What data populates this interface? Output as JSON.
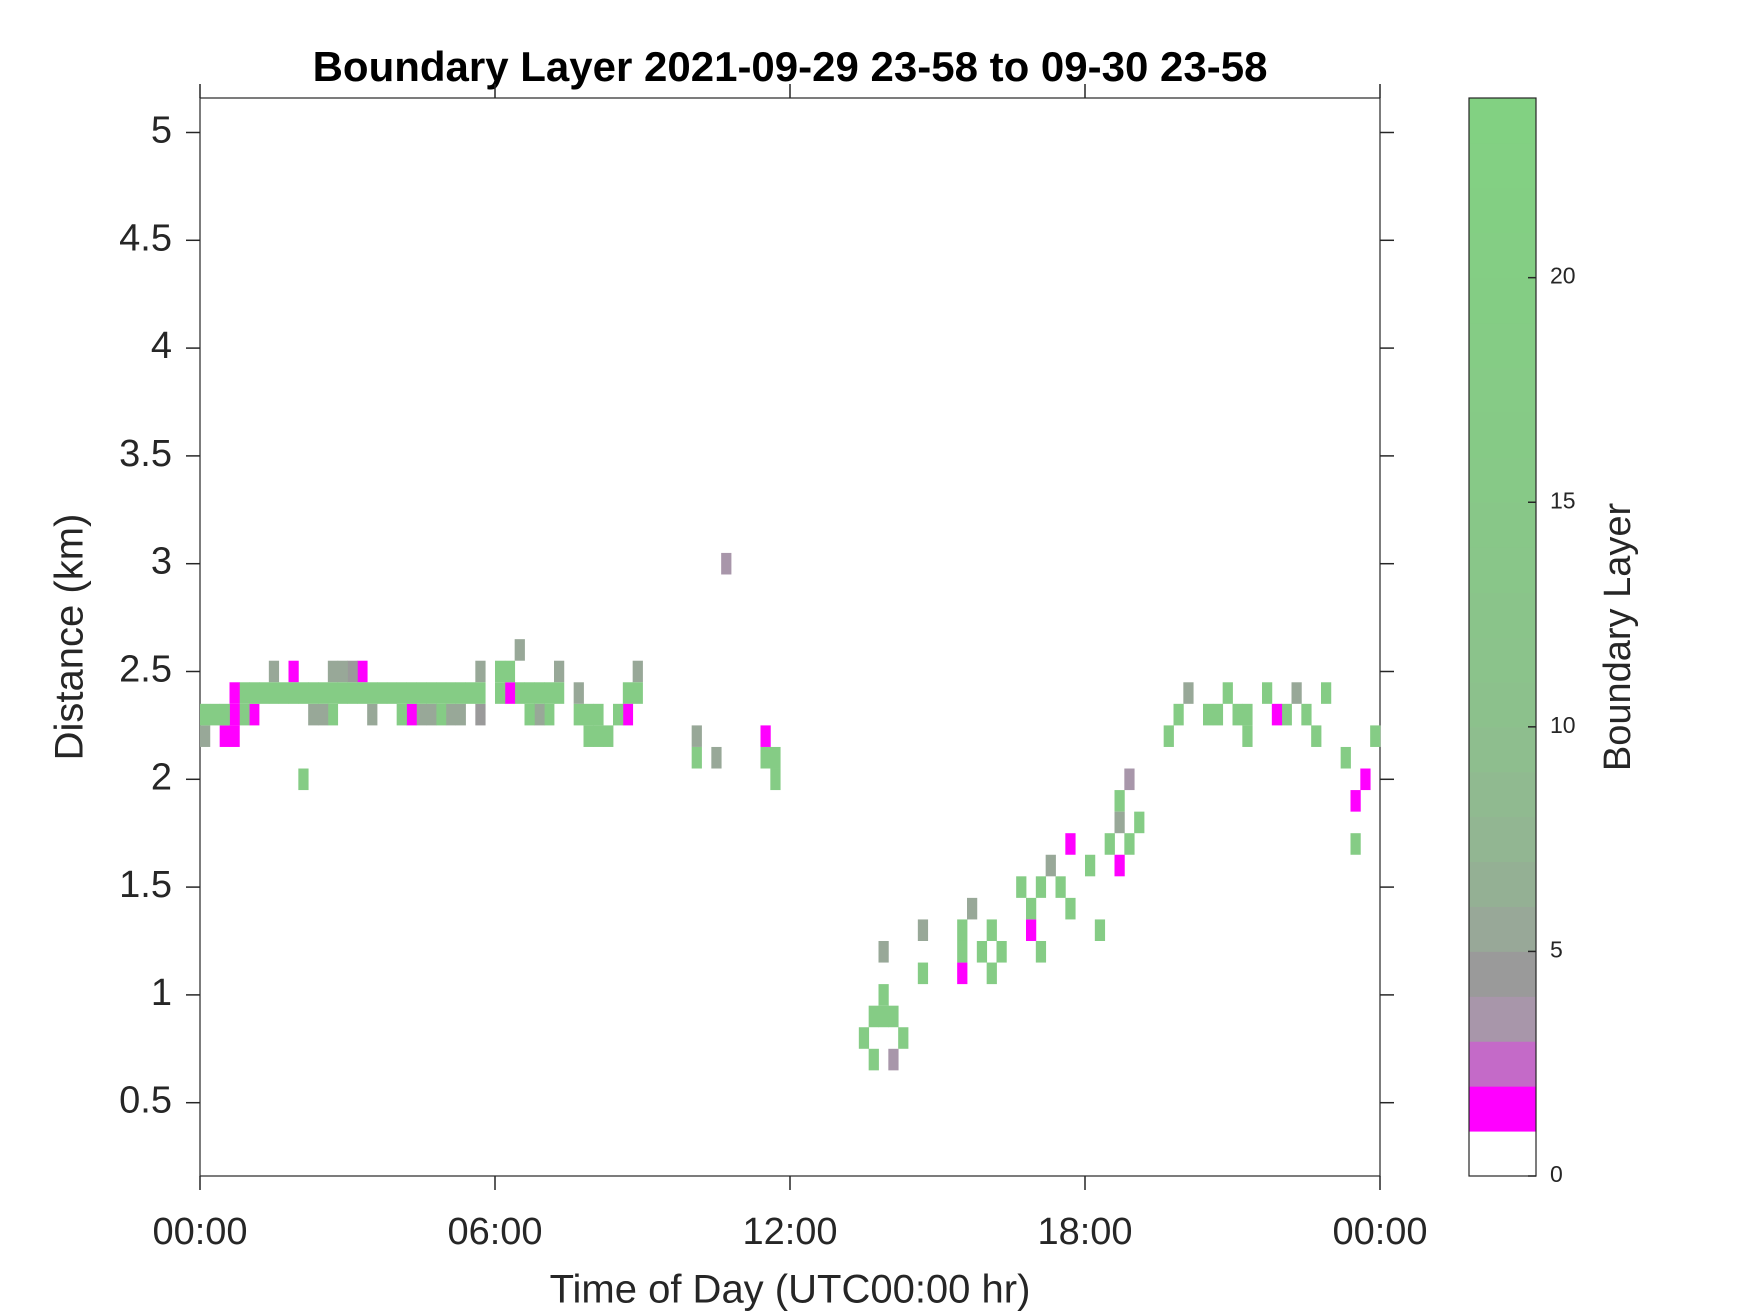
{
  "chart_data": {
    "type": "heatmap",
    "title": "Boundary Layer 2021-09-29 23-58 to 09-30 23-58",
    "xlabel": "Time of Day (UTC00:00 hr)",
    "ylabel": "Distance (km)",
    "xlim": [
      0,
      24
    ],
    "xticks": [
      {
        "value": 0,
        "label": "00:00"
      },
      {
        "value": 6,
        "label": "06:00"
      },
      {
        "value": 12,
        "label": "12:00"
      },
      {
        "value": 18,
        "label": "18:00"
      },
      {
        "value": 24,
        "label": "00:00"
      }
    ],
    "ylim": [
      0.16,
      5.16
    ],
    "yticks": [
      0.5,
      1,
      1.5,
      2,
      2.5,
      3,
      3.5,
      4,
      4.5,
      5
    ],
    "colorbar": {
      "label": "Boundary Layer",
      "lim": [
        0,
        24
      ],
      "ticks": [
        0,
        5,
        10,
        15,
        20
      ],
      "colormap": [
        "#ffffff",
        "#ff00ff",
        "#c46ac8",
        "#a896aa",
        "#9a9a9a",
        "#98a898",
        "#94b094",
        "#92b692",
        "#90ba90",
        "#8ebe8e",
        "#8cc18c",
        "#8bc38b",
        "#8ac48a",
        "#89c689",
        "#88c788",
        "#87c987",
        "#86ca86",
        "#86cb86",
        "#85cc85",
        "#84cd84",
        "#84ce84",
        "#83cf83",
        "#83d083",
        "#82d182"
      ]
    },
    "x": [
      0.0,
      0.2,
      0.4,
      0.6,
      0.8,
      0.0,
      0.4,
      0.6,
      0.6,
      0.8,
      1.0,
      1.2,
      1.4,
      1.6,
      1.8,
      2.0,
      2.2,
      2.4,
      2.6,
      2.8,
      3.0,
      3.2,
      3.4,
      3.6,
      3.8,
      1.4,
      1.8,
      2.6,
      2.8,
      3.0,
      3.2,
      2.2,
      2.4,
      2.6,
      3.4,
      1.0,
      2.0,
      4.0,
      4.2,
      4.4,
      4.6,
      4.8,
      5.0,
      5.2,
      5.4,
      5.6,
      4.0,
      4.2,
      4.4,
      4.6,
      4.8,
      5.0,
      5.2,
      5.6,
      5.6,
      6.0,
      6.2,
      6.4,
      6.0,
      6.2,
      6.4,
      6.6,
      6.8,
      7.0,
      7.2,
      6.6,
      6.8,
      7.0,
      7.6,
      7.6,
      7.8,
      8.0,
      7.8,
      8.0,
      8.2,
      8.4,
      8.6,
      8.6,
      8.8,
      8.8,
      7.2,
      10.0,
      10.0,
      10.4,
      10.6,
      11.4,
      11.4,
      11.6,
      11.6,
      13.4,
      13.6,
      13.6,
      13.8,
      13.8,
      13.8,
      14.0,
      14.2,
      14.6,
      14.6,
      15.4,
      15.4,
      15.4,
      15.6,
      15.8,
      16.0,
      16.0,
      16.2,
      16.6,
      16.8,
      16.8,
      17.0,
      17.2,
      17.0,
      17.4,
      17.6,
      17.6,
      18.0,
      18.2,
      18.4,
      18.6,
      18.6,
      18.8,
      18.8,
      19.0,
      19.6,
      19.8,
      20.0,
      20.4,
      20.6,
      20.8,
      21.0,
      21.2,
      21.6,
      21.8,
      22.0,
      22.2,
      22.4,
      22.6,
      22.8,
      23.2,
      23.4,
      23.4,
      23.6,
      23.8,
      21.2,
      18.6,
      14.0
    ],
    "y": [
      2.3,
      2.3,
      2.3,
      2.3,
      2.3,
      2.2,
      2.2,
      2.2,
      2.4,
      2.4,
      2.4,
      2.4,
      2.4,
      2.4,
      2.4,
      2.4,
      2.4,
      2.4,
      2.4,
      2.4,
      2.4,
      2.4,
      2.4,
      2.4,
      2.4,
      2.5,
      2.5,
      2.5,
      2.5,
      2.5,
      2.5,
      2.3,
      2.3,
      2.3,
      2.3,
      2.3,
      2.0,
      2.4,
      2.4,
      2.4,
      2.4,
      2.4,
      2.4,
      2.4,
      2.4,
      2.4,
      2.3,
      2.3,
      2.3,
      2.3,
      2.3,
      2.3,
      2.3,
      2.3,
      2.5,
      2.5,
      2.5,
      2.6,
      2.4,
      2.4,
      2.4,
      2.4,
      2.4,
      2.4,
      2.4,
      2.3,
      2.3,
      2.3,
      2.4,
      2.3,
      2.3,
      2.3,
      2.2,
      2.2,
      2.2,
      2.3,
      2.3,
      2.4,
      2.4,
      2.5,
      2.5,
      2.2,
      2.1,
      2.1,
      3.0,
      2.2,
      2.1,
      2.1,
      2.0,
      0.8,
      0.9,
      0.7,
      0.9,
      1.0,
      1.2,
      0.7,
      0.8,
      1.1,
      1.3,
      1.2,
      1.3,
      1.1,
      1.4,
      1.2,
      1.3,
      1.1,
      1.2,
      1.5,
      1.4,
      1.3,
      1.5,
      1.6,
      1.2,
      1.5,
      1.7,
      1.4,
      1.6,
      1.3,
      1.7,
      1.8,
      1.6,
      1.7,
      2.0,
      1.8,
      2.2,
      2.3,
      2.4,
      2.3,
      2.3,
      2.4,
      2.3,
      2.2,
      2.4,
      2.3,
      2.3,
      2.4,
      2.3,
      2.2,
      2.4,
      2.1,
      1.9,
      1.7,
      2.0,
      2.2,
      2.3,
      1.9,
      0.9
    ],
    "values": [
      18,
      18,
      18,
      1,
      18,
      5,
      1,
      1,
      1,
      18,
      18,
      18,
      18,
      18,
      18,
      18,
      18,
      18,
      18,
      18,
      18,
      18,
      18,
      18,
      18,
      5,
      1,
      5,
      5,
      4,
      1,
      5,
      5,
      18,
      5,
      1,
      18,
      18,
      18,
      18,
      18,
      18,
      18,
      18,
      18,
      18,
      18,
      1,
      5,
      5,
      18,
      5,
      5,
      4,
      5,
      18,
      18,
      5,
      18,
      1,
      18,
      18,
      18,
      18,
      18,
      18,
      5,
      18,
      5,
      18,
      18,
      18,
      18,
      18,
      18,
      18,
      1,
      18,
      18,
      5,
      5,
      5,
      18,
      5,
      3,
      1,
      18,
      18,
      18,
      18,
      18,
      18,
      18,
      18,
      5,
      3,
      18,
      18,
      5,
      18,
      18,
      1,
      5,
      18,
      18,
      18,
      18,
      18,
      18,
      1,
      18,
      5,
      18,
      18,
      1,
      18,
      18,
      18,
      18,
      5,
      1,
      18,
      3,
      18,
      18,
      18,
      5,
      18,
      18,
      18,
      18,
      18,
      18,
      1,
      18,
      5,
      18,
      18,
      18,
      18,
      1,
      18,
      1,
      18,
      18,
      18,
      18
    ]
  }
}
